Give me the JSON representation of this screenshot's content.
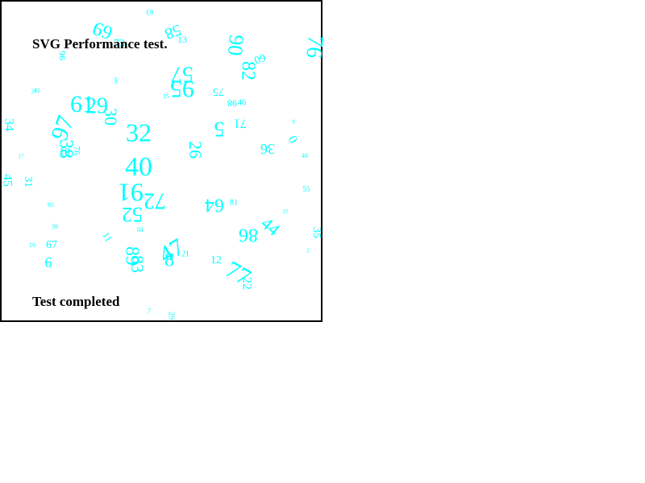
{
  "title": "SVG Performance test.",
  "status": "Test completed",
  "colors": {
    "number": "#00ffff",
    "border": "#000000",
    "text": "#000000",
    "background": "#ffffff"
  },
  "numbers": [
    "69",
    "63",
    "58",
    "13",
    "90",
    "76",
    "60",
    "82",
    "57",
    "95",
    "3",
    "41",
    "15",
    "75",
    "46",
    "98",
    "71",
    "34",
    "61",
    "30",
    "29",
    "32",
    "5",
    "38",
    "26",
    "0",
    "18",
    "40",
    "97",
    "36",
    "31",
    "91",
    "72",
    "52",
    "44",
    "86",
    "35",
    "64",
    "12",
    "76",
    "83",
    "89",
    "77",
    "22",
    "47",
    "67",
    "6",
    "11",
    "55",
    "8",
    "29",
    "7",
    "96",
    "45",
    "25",
    "73",
    "21",
    "16",
    "65",
    "84",
    "9",
    "39",
    "48",
    "81",
    "37",
    "2",
    "17"
  ]
}
